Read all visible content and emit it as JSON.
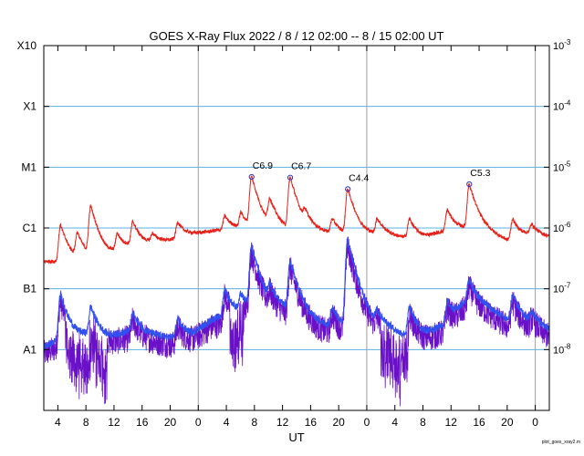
{
  "chart_data": {
    "type": "line",
    "title": "GOES X-Ray Flux   2022 /  8 / 12   02:00 --  8 / 15   02:00   UT",
    "xlabel": "UT",
    "footer": "plot_goes_xray2.m",
    "x_range_hours": [
      0,
      72
    ],
    "ylim_log10_wm2": [
      -9,
      -3
    ],
    "y_scale": "log",
    "grid": "horizontal lines at flare classes; vertical lines at day boundaries",
    "flare_classes": [
      {
        "label": "X10",
        "log10": -3
      },
      {
        "label": "X1",
        "log10": -4
      },
      {
        "label": "M1",
        "log10": -5
      },
      {
        "label": "C1",
        "log10": -6
      },
      {
        "label": "B1",
        "log10": -7
      },
      {
        "label": "A1",
        "log10": -8
      }
    ],
    "right_ticks": [
      {
        "base": "10",
        "exp": "-3",
        "log10": -3
      },
      {
        "base": "10",
        "exp": "-4",
        "log10": -4
      },
      {
        "base": "10",
        "exp": "-5",
        "log10": -5
      },
      {
        "base": "10",
        "exp": "-6",
        "log10": -6
      },
      {
        "base": "10",
        "exp": "-7",
        "log10": -7
      },
      {
        "base": "10",
        "exp": "-8",
        "log10": -8
      }
    ],
    "x_ticks": [
      {
        "label": "4",
        "h": 2
      },
      {
        "label": "8",
        "h": 6
      },
      {
        "label": "12",
        "h": 10
      },
      {
        "label": "16",
        "h": 14
      },
      {
        "label": "20",
        "h": 18
      },
      {
        "label": "0",
        "h": 22
      },
      {
        "label": "4",
        "h": 26
      },
      {
        "label": "8",
        "h": 30
      },
      {
        "label": "12",
        "h": 34
      },
      {
        "label": "16",
        "h": 38
      },
      {
        "label": "20",
        "h": 42
      },
      {
        "label": "0",
        "h": 46
      },
      {
        "label": "4",
        "h": 50
      },
      {
        "label": "8",
        "h": 54
      },
      {
        "label": "12",
        "h": 58
      },
      {
        "label": "16",
        "h": 62
      },
      {
        "label": "20",
        "h": 66
      },
      {
        "label": "0",
        "h": 70
      }
    ],
    "day_boundaries_h": [
      22,
      46,
      70
    ],
    "colors": {
      "long": "#e8201a",
      "short": "#3050f0",
      "short_dark": "#6a10c8",
      "grid": "#5ab0e0",
      "dayline": "#a0a0a0",
      "marker": "#3030c0"
    },
    "annotations": [
      {
        "label": "C6.9",
        "h": 29.6,
        "log10": -5.16
      },
      {
        "label": "C6.7",
        "h": 35.1,
        "log10": -5.17
      },
      {
        "label": "C4.4",
        "h": 43.3,
        "log10": -5.36
      },
      {
        "label": "C5.3",
        "h": 60.6,
        "log10": -5.28
      }
    ],
    "series": [
      {
        "name": "",
        "color": "#e8201a",
        "base": [
          [
            0,
            -6.55
          ],
          [
            3,
            -6.55
          ],
          [
            6,
            -6.5
          ],
          [
            9,
            -6.45
          ],
          [
            12,
            -6.3
          ],
          [
            15,
            -6.25
          ],
          [
            18,
            -6.2
          ],
          [
            21,
            -6.1
          ],
          [
            24,
            -6.05
          ],
          [
            27,
            -6.0
          ],
          [
            30,
            -6.05
          ],
          [
            33,
            -6.0
          ],
          [
            36,
            -6.05
          ],
          [
            39,
            -6.05
          ],
          [
            42,
            -6.1
          ],
          [
            45,
            -6.1
          ],
          [
            48,
            -6.1
          ],
          [
            51,
            -6.15
          ],
          [
            54,
            -6.15
          ],
          [
            57,
            -6.05
          ],
          [
            60,
            -6.0
          ],
          [
            63,
            -6.05
          ],
          [
            66,
            -6.2
          ],
          [
            69,
            -6.1
          ],
          [
            72,
            -6.15
          ]
        ],
        "peaks": [
          [
            2.4,
            -5.95
          ],
          [
            4.8,
            -6.1
          ],
          [
            6.7,
            -5.65
          ],
          [
            10.5,
            -6.1
          ],
          [
            12.7,
            -5.9
          ],
          [
            15.5,
            -6.1
          ],
          [
            19.1,
            -5.9
          ],
          [
            24.3,
            -6.15
          ],
          [
            25.8,
            -5.8
          ],
          [
            28.1,
            -5.75
          ],
          [
            29.6,
            -5.16
          ],
          [
            32.2,
            -5.55
          ],
          [
            35.1,
            -5.17
          ],
          [
            37.2,
            -5.8
          ],
          [
            41.1,
            -5.85
          ],
          [
            43.3,
            -5.36
          ],
          [
            47.5,
            -5.85
          ],
          [
            52.1,
            -5.85
          ],
          [
            57.5,
            -5.7
          ],
          [
            60.6,
            -5.28
          ],
          [
            66.8,
            -5.85
          ],
          [
            69.5,
            -5.95
          ]
        ]
      },
      {
        "name": "",
        "color": "#3050f0",
        "base": [
          [
            0,
            -7.95
          ],
          [
            3,
            -7.8
          ],
          [
            6,
            -7.75
          ],
          [
            9,
            -7.8
          ],
          [
            12,
            -7.7
          ],
          [
            15,
            -7.75
          ],
          [
            18,
            -7.8
          ],
          [
            21,
            -7.75
          ],
          [
            24,
            -7.5
          ],
          [
            27,
            -7.4
          ],
          [
            30,
            -7.35
          ],
          [
            33,
            -7.3
          ],
          [
            36,
            -7.4
          ],
          [
            39,
            -7.55
          ],
          [
            42,
            -7.65
          ],
          [
            45,
            -7.55
          ],
          [
            48,
            -7.6
          ],
          [
            51,
            -7.75
          ],
          [
            54,
            -7.75
          ],
          [
            57,
            -7.6
          ],
          [
            60,
            -7.2
          ],
          [
            63,
            -7.3
          ],
          [
            66,
            -7.5
          ],
          [
            69,
            -7.55
          ],
          [
            72,
            -7.7
          ]
        ],
        "peaks": [
          [
            2.4,
            -7.1
          ],
          [
            6.7,
            -7.3
          ],
          [
            12.7,
            -7.4
          ],
          [
            19.1,
            -7.5
          ],
          [
            25.8,
            -7.0
          ],
          [
            28.1,
            -7.1
          ],
          [
            29.6,
            -6.3
          ],
          [
            32.2,
            -7.0
          ],
          [
            35.1,
            -6.55
          ],
          [
            41.1,
            -7.3
          ],
          [
            43.3,
            -6.2
          ],
          [
            47.5,
            -7.4
          ],
          [
            52.1,
            -7.3
          ],
          [
            57.5,
            -7.2
          ],
          [
            60.6,
            -6.85
          ],
          [
            66.8,
            -7.1
          ],
          [
            69.5,
            -7.4
          ]
        ]
      }
    ]
  }
}
